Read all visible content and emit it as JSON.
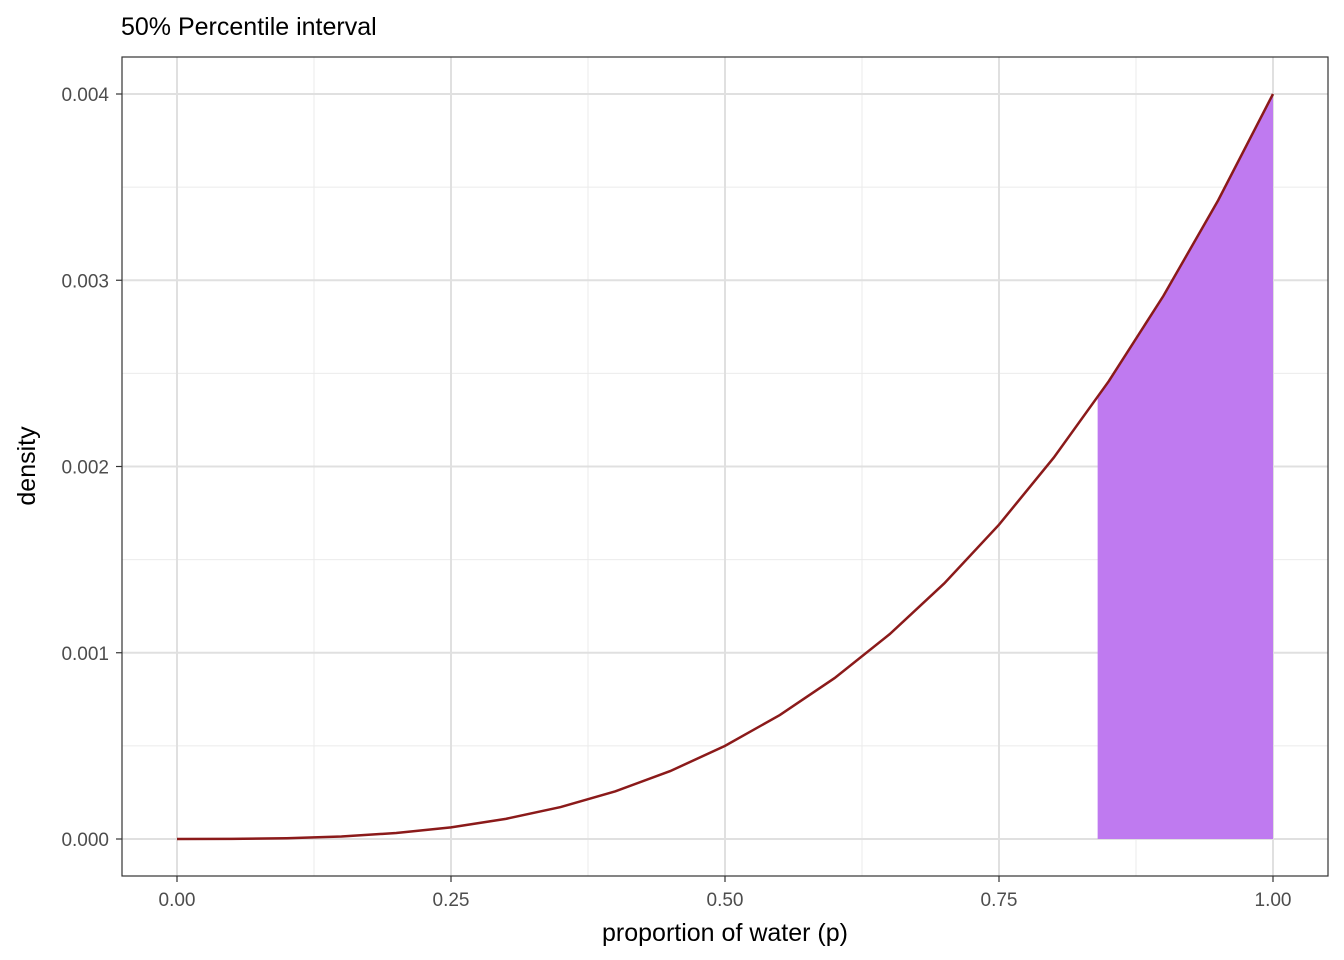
{
  "chart_data": {
    "type": "area",
    "title": "50% Percentile interval",
    "xlabel": "proportion of water (p)",
    "ylabel": "density",
    "xlim": [
      0,
      1
    ],
    "ylim": [
      0,
      0.004
    ],
    "x_ticks": [
      0,
      0.25,
      0.5,
      0.75,
      1
    ],
    "x_tick_labels": [
      "0.00",
      "0.25",
      "0.50",
      "0.75",
      "1.00"
    ],
    "y_ticks": [
      0,
      0.001,
      0.002,
      0.003,
      0.004
    ],
    "y_tick_labels": [
      "0.000",
      "0.001",
      "0.002",
      "0.003",
      "0.004"
    ],
    "grid": true,
    "series": [
      {
        "color": "#8B1A1A",
        "x": [
          0,
          0.05,
          0.1,
          0.15,
          0.2,
          0.25,
          0.3,
          0.35,
          0.4,
          0.45,
          0.5,
          0.55,
          0.6,
          0.65,
          0.7,
          0.75,
          0.8,
          0.85,
          0.9,
          0.95,
          1
        ],
        "y": [
          0,
          5e-07,
          4e-06,
          1.35e-05,
          3.2e-05,
          6.25e-05,
          0.000108,
          0.0001715,
          0.000256,
          0.0003645,
          0.0005,
          0.0006655,
          0.000864,
          0.0010985,
          0.001372,
          0.0016875,
          0.002048,
          0.0024565,
          0.002916,
          0.0034295,
          0.004
        ]
      }
    ],
    "shaded_interval": {
      "x_start": 0.84,
      "x_end": 1.0,
      "color": "#BF7AF0"
    }
  }
}
